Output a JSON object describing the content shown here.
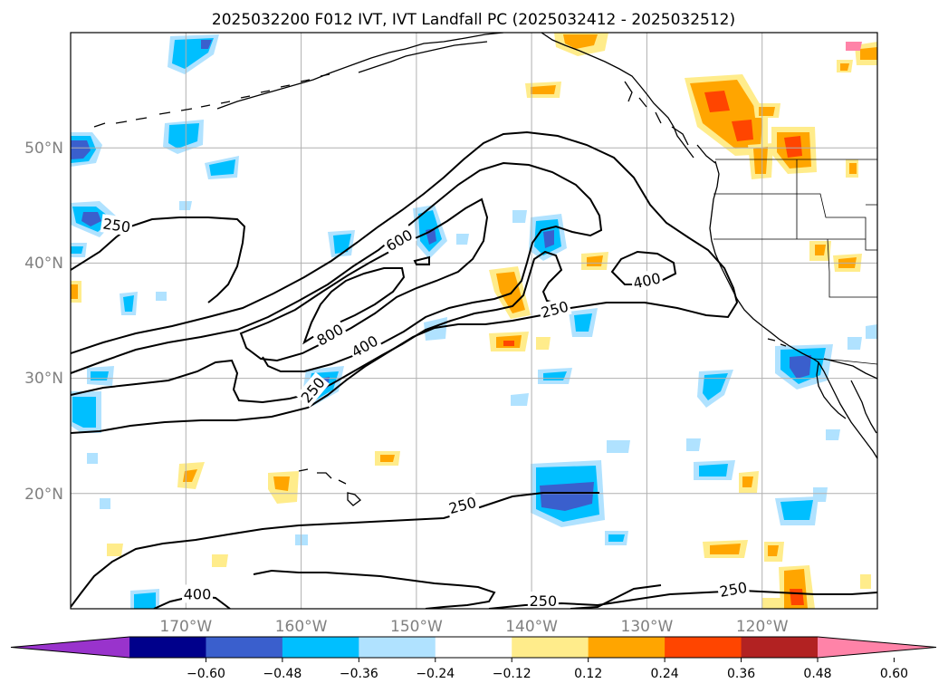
{
  "title": "2025032200 F012 IVT, IVT Landfall PC (2025032412 - 2025032512)",
  "map": {
    "lon_range": [
      -180,
      -110
    ],
    "lat_range": [
      10,
      60
    ],
    "lon_ticks": [
      {
        "lon": -170,
        "label": "170°W"
      },
      {
        "lon": -160,
        "label": "160°W"
      },
      {
        "lon": -150,
        "label": "150°W"
      },
      {
        "lon": -140,
        "label": "140°W"
      },
      {
        "lon": -130,
        "label": "130°W"
      },
      {
        "lon": -120,
        "label": "120°W"
      }
    ],
    "lat_ticks": [
      {
        "lat": 50,
        "label": "50°N"
      },
      {
        "lat": 40,
        "label": "40°N"
      },
      {
        "lat": 30,
        "label": "30°N"
      },
      {
        "lat": 20,
        "label": "20°N"
      }
    ],
    "grid": true
  },
  "colorbar": {
    "orientation": "horizontal",
    "extend": "both",
    "colors": [
      "#9933cc",
      "#00008b",
      "#3a5fcd",
      "#00bfff",
      "#b0e2ff",
      "#ffffff",
      "#ffec8b",
      "#ffa500",
      "#ff4500",
      "#b22222",
      "#ff83a8"
    ],
    "tick_labels": [
      "−0.60",
      "−0.48",
      "−0.36",
      "−0.24",
      "−0.12",
      "0.12",
      "0.24",
      "0.36",
      "0.48",
      "0.60"
    ]
  },
  "contour_labels": [
    {
      "text": "250",
      "lon": -176,
      "lat": 43.3,
      "angle": 8
    },
    {
      "text": "600",
      "lon": -151.5,
      "lat": 42.0,
      "angle": -30
    },
    {
      "text": "800",
      "lon": -157.5,
      "lat": 33.8,
      "angle": -30
    },
    {
      "text": "400",
      "lon": -154.5,
      "lat": 32.8,
      "angle": -30
    },
    {
      "text": "250",
      "lon": -159,
      "lat": 29.0,
      "angle": -50
    },
    {
      "text": "250",
      "lon": -138,
      "lat": 36.0,
      "angle": -15
    },
    {
      "text": "400",
      "lon": -130,
      "lat": 38.5,
      "angle": -12
    },
    {
      "text": "250",
      "lon": -146,
      "lat": 19.0,
      "angle": -15
    },
    {
      "text": "400",
      "lon": -169,
      "lat": 11.3,
      "angle": 0
    },
    {
      "text": "250",
      "lon": -139,
      "lat": 10.7,
      "angle": 0
    },
    {
      "text": "250",
      "lon": -122.5,
      "lat": 11.7,
      "angle": -10
    }
  ]
}
